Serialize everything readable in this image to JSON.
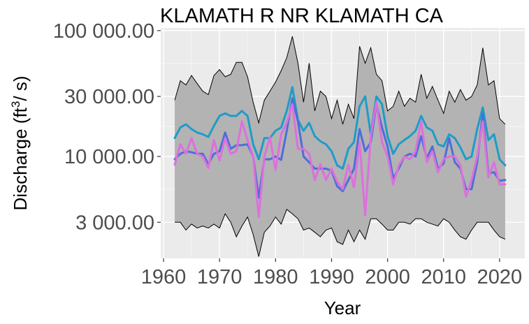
{
  "chart_data": {
    "type": "line",
    "title": "KLAMATH R NR KLAMATH CA",
    "xlabel": "Year",
    "ylabel": {
      "prefix": "Discharge (ft",
      "superscript": "3",
      "suffix": "/ s)"
    },
    "y_scale": "log",
    "xlim": [
      1959.5,
      2024.5
    ],
    "ylim": [
      1550,
      105000
    ],
    "x_ticks": [
      1960,
      1970,
      1980,
      1990,
      2000,
      2010,
      2020
    ],
    "x_tick_labels": [
      "1960",
      "1970",
      "1980",
      "1990",
      "2000",
      "2010",
      "2020"
    ],
    "y_ticks": [
      3000,
      10000,
      30000,
      100000
    ],
    "y_tick_labels": [
      "3 000.00",
      "10 000.00",
      "30 000.00",
      "100 000.00"
    ],
    "grid": true,
    "legend": "none",
    "x": [
      1962,
      1963,
      1964,
      1965,
      1966,
      1967,
      1968,
      1969,
      1970,
      1971,
      1972,
      1973,
      1974,
      1975,
      1976,
      1977,
      1978,
      1979,
      1980,
      1981,
      1982,
      1983,
      1984,
      1985,
      1986,
      1987,
      1988,
      1989,
      1990,
      1991,
      1992,
      1993,
      1994,
      1995,
      1996,
      1997,
      1998,
      1999,
      2000,
      2001,
      2002,
      2003,
      2004,
      2005,
      2006,
      2007,
      2008,
      2009,
      2010,
      2011,
      2012,
      2013,
      2014,
      2015,
      2016,
      2017,
      2018,
      2019,
      2020,
      2021
    ],
    "series": [
      {
        "kind": "band_max",
        "color": "#000000",
        "fill": "#b3b3b3",
        "values": [
          28000,
          40000,
          37000,
          44000,
          38000,
          33000,
          31000,
          44000,
          49000,
          43000,
          45000,
          56000,
          56000,
          43000,
          27000,
          18500,
          28000,
          33000,
          39000,
          48000,
          61000,
          90000,
          55000,
          27000,
          55000,
          23000,
          33000,
          30000,
          20000,
          28000,
          18000,
          26000,
          20000,
          75000,
          55000,
          73000,
          45000,
          40000,
          23000,
          25000,
          33000,
          25000,
          29000,
          27000,
          45000,
          29000,
          36000,
          28000,
          22000,
          33000,
          27000,
          34000,
          28000,
          30000,
          37000,
          73000,
          37000,
          40000,
          20000,
          18000
        ]
      },
      {
        "kind": "band_min",
        "values": [
          3000,
          3000,
          2600,
          2900,
          2700,
          2800,
          2700,
          2900,
          2700,
          3500,
          3000,
          2300,
          2800,
          3300,
          2400,
          1600,
          2500,
          2800,
          3300,
          2900,
          3800,
          3500,
          3200,
          2600,
          2700,
          2500,
          2300,
          2600,
          2700,
          2100,
          2000,
          2600,
          2100,
          2600,
          2200,
          3200,
          3200,
          2900,
          2600,
          2600,
          3000,
          3000,
          2900,
          3200,
          3200,
          3000,
          2900,
          2800,
          3200,
          3000,
          2600,
          2300,
          2200,
          2600,
          3000,
          3000,
          3000,
          2600,
          2300,
          2200
        ]
      },
      {
        "kind": "line",
        "color": "#1e9cc9",
        "values": [
          14000,
          17000,
          18000,
          16500,
          15500,
          15000,
          14300,
          17500,
          21000,
          22000,
          21000,
          21000,
          23000,
          21000,
          12500,
          9500,
          14000,
          14000,
          16000,
          17000,
          23000,
          35500,
          19500,
          16000,
          18500,
          14500,
          13200,
          12500,
          11000,
          8500,
          8000,
          11500,
          13000,
          25000,
          30000,
          15000,
          30000,
          26000,
          14500,
          10500,
          12500,
          13500,
          14500,
          16000,
          21000,
          17000,
          16000,
          12500,
          12000,
          15000,
          14000,
          11800,
          9500,
          10000,
          16500,
          24500,
          13500,
          15000,
          9500,
          8500
        ]
      },
      {
        "kind": "line",
        "color": "#4e6ed8",
        "values": [
          9500,
          10500,
          11000,
          10800,
          10500,
          10500,
          8700,
          10500,
          11000,
          15500,
          11500,
          12300,
          12300,
          12500,
          10000,
          4700,
          9500,
          9500,
          10000,
          9400,
          16000,
          29000,
          19000,
          10000,
          9000,
          8000,
          8000,
          8000,
          7700,
          5800,
          5300,
          6500,
          8000,
          16500,
          11000,
          13000,
          26000,
          17000,
          12000,
          6700,
          8000,
          10000,
          10500,
          10000,
          14500,
          9700,
          12000,
          8000,
          8800,
          14000,
          9000,
          8000,
          5500,
          5500,
          9000,
          22000,
          7300,
          7500,
          6400,
          6500
        ]
      },
      {
        "kind": "line",
        "color": "#dd70dd",
        "values": [
          8600,
          12500,
          10500,
          14000,
          10500,
          10000,
          8100,
          13500,
          9300,
          14000,
          10500,
          11000,
          19000,
          13500,
          10000,
          3300,
          10000,
          14200,
          7800,
          15000,
          18500,
          26000,
          11500,
          11500,
          10500,
          6500,
          8700,
          6500,
          8000,
          6300,
          5500,
          8600,
          5700,
          13000,
          3400,
          14500,
          27000,
          13000,
          10000,
          6000,
          8500,
          10000,
          9500,
          11000,
          19000,
          9000,
          11000,
          7500,
          9500,
          10000,
          10000,
          8500,
          4800,
          6500,
          10000,
          19000,
          6800,
          9000,
          6000,
          6000
        ]
      }
    ]
  }
}
